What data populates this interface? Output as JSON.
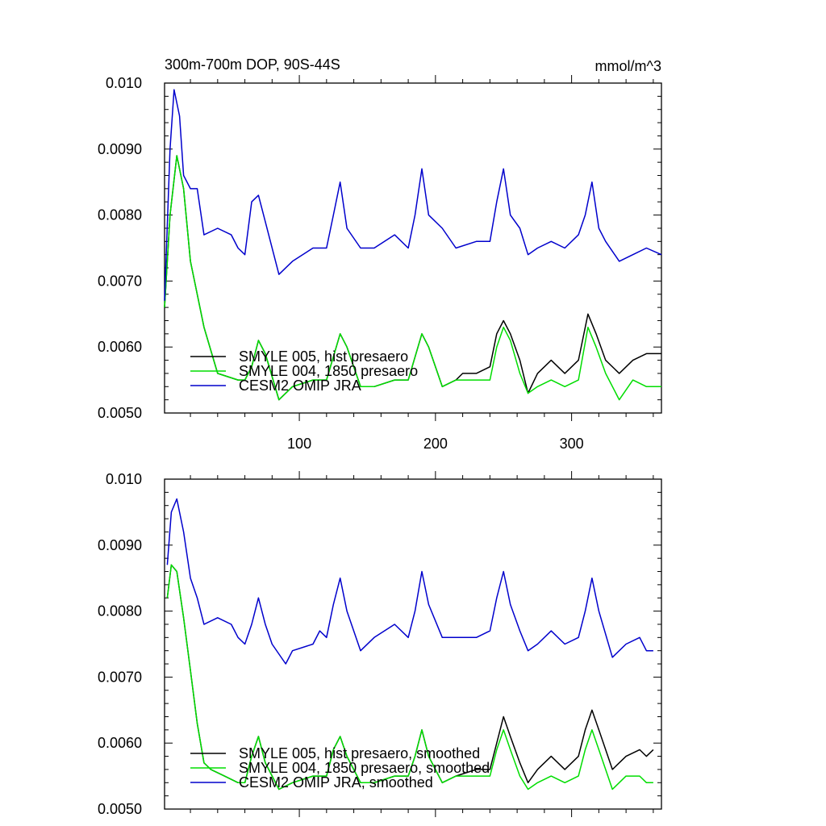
{
  "figure": {
    "title": "300m-700m DOP, 90S-44S",
    "units": "mmol/m^3"
  },
  "colors": {
    "smyle005": "#000000",
    "smyle004": "#00dd00",
    "omip": "#0000cc"
  },
  "chart_data": [
    {
      "type": "line",
      "xlim": [
        1,
        366
      ],
      "ylim": [
        0.005,
        0.01
      ],
      "yticks": [
        0.005,
        0.006,
        0.007,
        0.008,
        0.009,
        0.01
      ],
      "ytick_labels": [
        "0.0050",
        "0.0060",
        "0.0070",
        "0.0080",
        "0.0090",
        "0.010"
      ],
      "xticks": [
        100,
        200,
        300
      ],
      "xtick_labels": [
        "100",
        "200",
        "300"
      ],
      "legend_position": "bottom-left",
      "series": [
        {
          "name": "SMYLE 005, hist presaero",
          "color": "#000000",
          "x": [
            1,
            5,
            10,
            15,
            20,
            30,
            40,
            55,
            60,
            65,
            70,
            75,
            85,
            95,
            110,
            120,
            130,
            135,
            145,
            155,
            170,
            180,
            190,
            195,
            205,
            215,
            220,
            230,
            240,
            245,
            250,
            255,
            262,
            268,
            275,
            285,
            295,
            305,
            312,
            318,
            325,
            335,
            345,
            355,
            366
          ],
          "y": [
            0.0066,
            0.008,
            0.0089,
            0.0084,
            0.0073,
            0.0063,
            0.0056,
            0.0055,
            0.0055,
            0.0057,
            0.0061,
            0.0059,
            0.0052,
            0.0054,
            0.0055,
            0.0055,
            0.0062,
            0.006,
            0.0054,
            0.0054,
            0.0055,
            0.0055,
            0.0062,
            0.006,
            0.0054,
            0.0055,
            0.0056,
            0.0056,
            0.0057,
            0.0062,
            0.0064,
            0.0062,
            0.0058,
            0.0053,
            0.0056,
            0.0058,
            0.0056,
            0.0058,
            0.0065,
            0.0062,
            0.0058,
            0.0056,
            0.0058,
            0.0059,
            0.0059
          ]
        },
        {
          "name": "SMYLE 004, 1850 presaero",
          "color": "#00dd00",
          "x": [
            1,
            5,
            10,
            15,
            20,
            30,
            40,
            55,
            60,
            65,
            70,
            75,
            85,
            95,
            110,
            120,
            130,
            135,
            145,
            155,
            170,
            180,
            190,
            195,
            205,
            215,
            220,
            230,
            240,
            245,
            250,
            255,
            262,
            268,
            275,
            285,
            295,
            305,
            312,
            318,
            325,
            335,
            345,
            355,
            366
          ],
          "y": [
            0.0066,
            0.008,
            0.0089,
            0.0084,
            0.0073,
            0.0063,
            0.0056,
            0.0055,
            0.0055,
            0.0057,
            0.0061,
            0.0059,
            0.0052,
            0.0054,
            0.0055,
            0.0055,
            0.0062,
            0.006,
            0.0054,
            0.0054,
            0.0055,
            0.0055,
            0.0062,
            0.006,
            0.0054,
            0.0055,
            0.0055,
            0.0055,
            0.0055,
            0.006,
            0.0063,
            0.0061,
            0.0056,
            0.0053,
            0.0054,
            0.0055,
            0.0054,
            0.0055,
            0.0063,
            0.006,
            0.0056,
            0.0052,
            0.0055,
            0.0054,
            0.0054
          ]
        },
        {
          "name": "CESM2 OMIP JRA",
          "color": "#0000cc",
          "x": [
            1,
            5,
            8,
            12,
            15,
            20,
            25,
            30,
            40,
            50,
            55,
            60,
            65,
            70,
            75,
            85,
            95,
            110,
            120,
            125,
            130,
            135,
            145,
            155,
            170,
            180,
            185,
            190,
            195,
            205,
            215,
            230,
            240,
            245,
            250,
            255,
            262,
            268,
            275,
            285,
            295,
            305,
            310,
            315,
            320,
            325,
            335,
            345,
            355,
            366
          ],
          "y": [
            0.0067,
            0.009,
            0.0099,
            0.0095,
            0.0086,
            0.0084,
            0.0084,
            0.0077,
            0.0078,
            0.0077,
            0.0075,
            0.0074,
            0.0082,
            0.0083,
            0.0079,
            0.0071,
            0.0073,
            0.0075,
            0.0075,
            0.008,
            0.0085,
            0.0078,
            0.0075,
            0.0075,
            0.0077,
            0.0075,
            0.008,
            0.0087,
            0.008,
            0.0078,
            0.0075,
            0.0076,
            0.0076,
            0.0082,
            0.0087,
            0.008,
            0.0078,
            0.0074,
            0.0075,
            0.0076,
            0.0075,
            0.0077,
            0.008,
            0.0085,
            0.0078,
            0.0076,
            0.0073,
            0.0074,
            0.0075,
            0.0074
          ]
        }
      ]
    },
    {
      "type": "line",
      "xlim": [
        1,
        366
      ],
      "ylim": [
        0.005,
        0.01
      ],
      "yticks": [
        0.005,
        0.006,
        0.007,
        0.008,
        0.009,
        0.01
      ],
      "ytick_labels": [
        "0.0050",
        "0.0060",
        "0.0070",
        "0.0080",
        "0.0090",
        "0.010"
      ],
      "xticks": [
        100,
        200,
        300
      ],
      "xtick_labels": [],
      "legend_position": "bottom-left",
      "series": [
        {
          "name": "SMYLE 005, hist presaero, smoothed",
          "color": "#000000",
          "x": [
            3,
            6,
            10,
            15,
            20,
            25,
            30,
            35,
            45,
            55,
            60,
            65,
            70,
            75,
            85,
            95,
            110,
            120,
            125,
            130,
            135,
            145,
            155,
            170,
            180,
            185,
            190,
            195,
            205,
            215,
            230,
            240,
            245,
            250,
            255,
            262,
            268,
            275,
            285,
            295,
            305,
            310,
            315,
            320,
            330,
            340,
            350,
            355,
            360
          ],
          "y": [
            0.0082,
            0.0087,
            0.0086,
            0.0079,
            0.0071,
            0.0063,
            0.0057,
            0.0056,
            0.0055,
            0.0054,
            0.0054,
            0.0058,
            0.0061,
            0.0057,
            0.0053,
            0.0054,
            0.0055,
            0.0055,
            0.0059,
            0.0061,
            0.0058,
            0.0054,
            0.0054,
            0.0055,
            0.0055,
            0.0058,
            0.0062,
            0.0058,
            0.0054,
            0.0055,
            0.0056,
            0.0056,
            0.006,
            0.0064,
            0.0061,
            0.0057,
            0.0054,
            0.0056,
            0.0058,
            0.0056,
            0.0058,
            0.0062,
            0.0065,
            0.0062,
            0.0056,
            0.0058,
            0.0059,
            0.0058,
            0.0059
          ]
        },
        {
          "name": "SMYLE 004, 1850 presaero, smoothed",
          "color": "#00dd00",
          "x": [
            3,
            6,
            10,
            15,
            20,
            25,
            30,
            35,
            45,
            55,
            60,
            65,
            70,
            75,
            85,
            95,
            110,
            120,
            125,
            130,
            135,
            145,
            155,
            170,
            180,
            185,
            190,
            195,
            205,
            215,
            230,
            240,
            245,
            250,
            255,
            262,
            268,
            275,
            285,
            295,
            305,
            310,
            315,
            320,
            330,
            340,
            350,
            355,
            360
          ],
          "y": [
            0.0082,
            0.0087,
            0.0086,
            0.0079,
            0.0071,
            0.0063,
            0.0057,
            0.0056,
            0.0055,
            0.0054,
            0.0054,
            0.0058,
            0.0061,
            0.0057,
            0.0053,
            0.0054,
            0.0055,
            0.0055,
            0.0059,
            0.0061,
            0.0058,
            0.0054,
            0.0054,
            0.0055,
            0.0055,
            0.0058,
            0.0062,
            0.0058,
            0.0054,
            0.0055,
            0.0055,
            0.0055,
            0.0059,
            0.0062,
            0.0059,
            0.0055,
            0.0053,
            0.0054,
            0.0055,
            0.0054,
            0.0055,
            0.0059,
            0.0062,
            0.0059,
            0.0053,
            0.0055,
            0.0055,
            0.0054,
            0.0054
          ]
        },
        {
          "name": "CESM2 OMIP JRA, smoothed",
          "color": "#0000cc",
          "x": [
            3,
            6,
            10,
            15,
            20,
            25,
            30,
            40,
            50,
            55,
            60,
            65,
            70,
            75,
            80,
            90,
            95,
            110,
            115,
            120,
            125,
            130,
            135,
            145,
            155,
            170,
            180,
            185,
            190,
            195,
            205,
            215,
            230,
            240,
            245,
            250,
            255,
            262,
            268,
            275,
            285,
            295,
            305,
            310,
            315,
            320,
            330,
            340,
            350,
            355,
            360
          ],
          "y": [
            0.0087,
            0.0095,
            0.0097,
            0.0092,
            0.0085,
            0.0082,
            0.0078,
            0.0079,
            0.0078,
            0.0076,
            0.0075,
            0.0078,
            0.0082,
            0.0078,
            0.0075,
            0.0072,
            0.0074,
            0.0075,
            0.0077,
            0.0076,
            0.0081,
            0.0085,
            0.008,
            0.0074,
            0.0076,
            0.0078,
            0.0076,
            0.008,
            0.0086,
            0.0081,
            0.0076,
            0.0076,
            0.0076,
            0.0077,
            0.0082,
            0.0086,
            0.0081,
            0.0077,
            0.0074,
            0.0075,
            0.0077,
            0.0075,
            0.0076,
            0.008,
            0.0085,
            0.008,
            0.0073,
            0.0075,
            0.0076,
            0.0074,
            0.0074
          ]
        }
      ]
    }
  ]
}
